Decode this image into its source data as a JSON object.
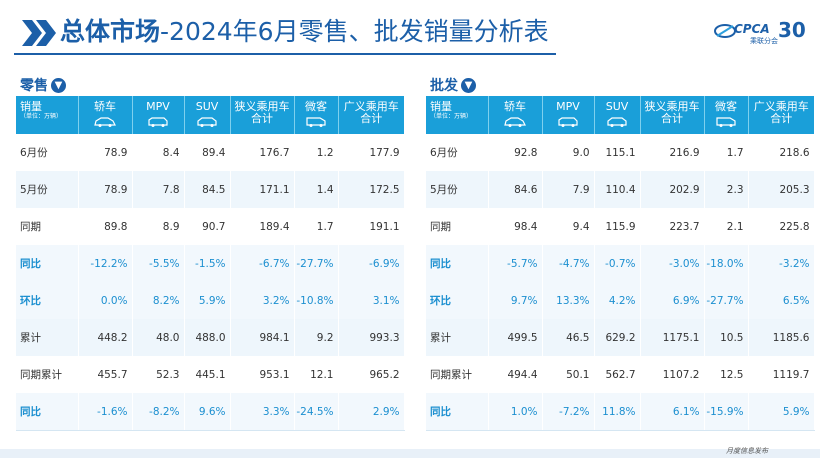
{
  "header": {
    "title_bold": "总体市场",
    "title_rest": "-2024年6月零售、批发销量分析表",
    "logo_text": "CPCA",
    "logo_sub": "乘联分会",
    "logo_number": "30"
  },
  "retail": {
    "label": "零售",
    "columns": [
      "轿车",
      "MPV",
      "SUV",
      "狭义乘用车合计",
      "微客",
      "广义乘用车合计"
    ],
    "rows": [
      {
        "label": "6月份",
        "values": [
          "78.9",
          "8.4",
          "89.4",
          "176.7",
          "1.2",
          "177.9"
        ]
      },
      {
        "label": "5月份",
        "values": [
          "78.9",
          "7.8",
          "84.5",
          "171.1",
          "1.4",
          "172.5"
        ]
      },
      {
        "label": "同期",
        "values": [
          "89.8",
          "8.9",
          "90.7",
          "189.4",
          "1.7",
          "191.1"
        ]
      },
      {
        "label": "同比",
        "values": [
          "-12.2%",
          "-5.5%",
          "-1.5%",
          "-6.7%",
          "-27.7%",
          "-6.9%"
        ]
      },
      {
        "label": "环比",
        "values": [
          "0.0%",
          "8.2%",
          "5.9%",
          "3.2%",
          "-10.8%",
          "3.1%"
        ]
      },
      {
        "label": "累计",
        "values": [
          "448.2",
          "48.0",
          "488.0",
          "984.1",
          "9.2",
          "993.3"
        ]
      },
      {
        "label": "同期累计",
        "values": [
          "455.7",
          "52.3",
          "445.1",
          "953.1",
          "12.1",
          "965.2"
        ]
      },
      {
        "label": "同比",
        "values": [
          "-1.6%",
          "-8.2%",
          "9.6%",
          "3.3%",
          "-24.5%",
          "2.9%"
        ]
      }
    ]
  },
  "wholesale": {
    "label": "批发",
    "columns": [
      "轿车",
      "MPV",
      "SUV",
      "狭义乘用车合计",
      "微客",
      "广义乘用车合计"
    ],
    "rows": [
      {
        "label": "6月份",
        "values": [
          "92.8",
          "9.0",
          "115.1",
          "216.9",
          "1.7",
          "218.6"
        ]
      },
      {
        "label": "5月份",
        "values": [
          "84.6",
          "7.9",
          "110.4",
          "202.9",
          "2.3",
          "205.3"
        ]
      },
      {
        "label": "同期",
        "values": [
          "98.4",
          "9.4",
          "115.9",
          "223.7",
          "2.1",
          "225.8"
        ]
      },
      {
        "label": "同比",
        "values": [
          "-5.7%",
          "-4.7%",
          "-0.7%",
          "-3.0%",
          "-18.0%",
          "-3.2%"
        ]
      },
      {
        "label": "环比",
        "values": [
          "9.7%",
          "13.3%",
          "4.2%",
          "6.9%",
          "-27.7%",
          "6.5%"
        ]
      },
      {
        "label": "累计",
        "values": [
          "499.5",
          "46.5",
          "629.2",
          "1175.1",
          "10.5",
          "1185.6"
        ]
      },
      {
        "label": "同期累计",
        "values": [
          "494.4",
          "50.1",
          "562.7",
          "1107.2",
          "12.5",
          "1119.7"
        ]
      },
      {
        "label": "同比",
        "values": [
          "1.0%",
          "-7.2%",
          "11.8%",
          "6.1%",
          "-15.9%",
          "5.9%"
        ]
      }
    ]
  },
  "table_header": {
    "sales": "销量",
    "unit": "（单位：万辆）"
  },
  "footer": {
    "text": "月度信息发布"
  },
  "colors": {
    "brand_blue": "#1c5fa8",
    "header_cyan": "#1a9fd9",
    "highlight_text": "#1c8fd0"
  },
  "icons": {
    "chevron": "double-chevron-right-icon",
    "section": "arrow-down-circle-icon"
  }
}
